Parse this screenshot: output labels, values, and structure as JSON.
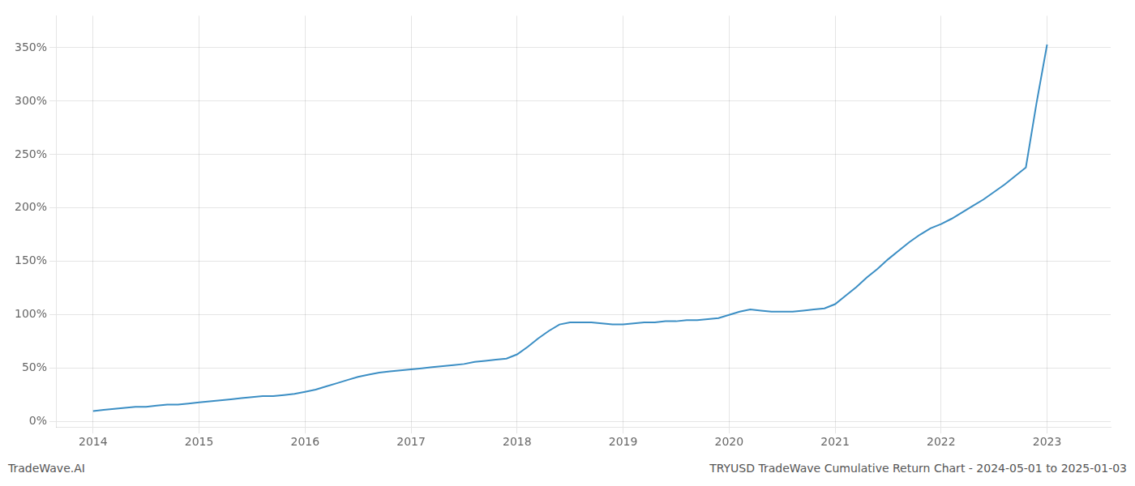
{
  "chart_data": {
    "type": "line",
    "annotations": [
      "TradeWave.AI",
      "TRYUSD TradeWave Cumulative Return Chart - 2024-05-01 to 2025-01-03"
    ],
    "x": [
      2014.0,
      2014.1,
      2014.2,
      2014.3,
      2014.4,
      2014.5,
      2014.6,
      2014.7,
      2014.8,
      2014.9,
      2015.0,
      2015.1,
      2015.2,
      2015.3,
      2015.4,
      2015.5,
      2015.6,
      2015.7,
      2015.8,
      2015.9,
      2016.0,
      2016.1,
      2016.2,
      2016.3,
      2016.4,
      2016.5,
      2016.6,
      2016.7,
      2016.8,
      2016.9,
      2017.0,
      2017.1,
      2017.2,
      2017.3,
      2017.4,
      2017.5,
      2017.6,
      2017.7,
      2017.8,
      2017.9,
      2018.0,
      2018.1,
      2018.2,
      2018.3,
      2018.4,
      2018.5,
      2018.6,
      2018.7,
      2018.8,
      2018.9,
      2019.0,
      2019.1,
      2019.2,
      2019.3,
      2019.4,
      2019.5,
      2019.6,
      2019.7,
      2019.8,
      2019.9,
      2020.0,
      2020.1,
      2020.2,
      2020.3,
      2020.4,
      2020.5,
      2020.6,
      2020.7,
      2020.8,
      2020.9,
      2021.0,
      2021.1,
      2021.2,
      2021.3,
      2021.4,
      2021.5,
      2021.6,
      2021.7,
      2021.8,
      2021.9,
      2022.0,
      2022.1,
      2022.2,
      2022.3,
      2022.4,
      2022.5,
      2022.6,
      2022.7,
      2022.8,
      2022.9,
      2023.0
    ],
    "values": [
      10,
      11,
      12,
      13,
      14,
      14,
      15,
      16,
      16,
      17,
      18,
      19,
      20,
      21,
      22,
      23,
      24,
      24,
      25,
      26,
      28,
      30,
      33,
      36,
      39,
      42,
      44,
      46,
      47,
      48,
      49,
      50,
      51,
      52,
      53,
      54,
      56,
      57,
      58,
      59,
      63,
      70,
      78,
      85,
      91,
      93,
      93,
      93,
      92,
      91,
      91,
      92,
      93,
      93,
      94,
      94,
      95,
      95,
      96,
      97,
      100,
      103,
      105,
      104,
      103,
      103,
      103,
      104,
      105,
      106,
      110,
      118,
      126,
      135,
      143,
      152,
      160,
      168,
      175,
      181,
      185,
      190,
      196,
      202,
      208,
      215,
      222,
      230,
      238,
      298,
      353
    ],
    "color": "#3b8ec4",
    "xlim": [
      2013.65,
      2023.6
    ],
    "xticks": [
      2014,
      2015,
      2016,
      2017,
      2018,
      2019,
      2020,
      2021,
      2022,
      2023
    ],
    "ylim": [
      -5,
      380
    ],
    "yticks": [
      {
        "value": 0,
        "label": "0%"
      },
      {
        "value": 50,
        "label": "50%"
      },
      {
        "value": 100,
        "label": "100%"
      },
      {
        "value": 150,
        "label": "150%"
      },
      {
        "value": 200,
        "label": "200%"
      },
      {
        "value": 250,
        "label": "250%"
      },
      {
        "value": 300,
        "label": "300%"
      },
      {
        "value": 350,
        "label": "350%"
      }
    ],
    "grid": true
  }
}
